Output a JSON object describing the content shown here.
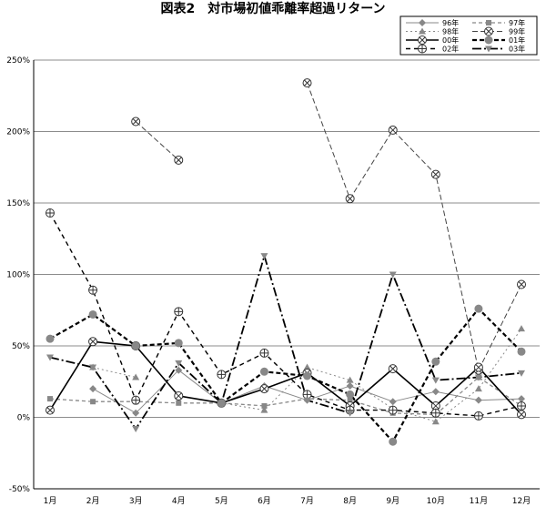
{
  "chart_data": {
    "type": "line",
    "title": "図表2　対市場初値乖離率超過リターン",
    "categories": [
      "1月",
      "2月",
      "3月",
      "4月",
      "5月",
      "6月",
      "7月",
      "8月",
      "9月",
      "10月",
      "11月",
      "12月"
    ],
    "y_ticks": [
      "250%",
      "200%",
      "150%",
      "100%",
      "50%",
      "0%",
      "-50%"
    ],
    "ylim": [
      -50,
      250
    ],
    "grid": "horizontal",
    "legend_position": "top-right",
    "series": [
      {
        "name": "96年",
        "values": [
          null,
          20,
          3,
          33,
          10,
          22,
          12,
          22,
          11,
          18,
          12,
          13
        ]
      },
      {
        "name": "97年",
        "values": [
          13,
          11,
          11,
          10,
          10,
          8,
          13,
          12,
          3,
          2,
          28,
          8
        ]
      },
      {
        "name": "98年",
        "values": [
          null,
          35,
          28,
          null,
          10,
          5,
          35,
          26,
          6,
          -3,
          20,
          62
        ]
      },
      {
        "name": "99年",
        "values": [
          null,
          null,
          207,
          180,
          null,
          null,
          234,
          153,
          201,
          170,
          33,
          93
        ]
      },
      {
        "name": "00年",
        "values": [
          5,
          53,
          50,
          15,
          10,
          20,
          31,
          8,
          34,
          8,
          35,
          2
        ]
      },
      {
        "name": "01年",
        "values": [
          55,
          72,
          50,
          52,
          10,
          32,
          29,
          16,
          -17,
          39,
          76,
          46
        ]
      },
      {
        "name": "02年",
        "values": [
          143,
          89,
          12,
          74,
          30,
          45,
          16,
          5,
          5,
          3,
          1,
          8
        ]
      },
      {
        "name": "03年",
        "values": [
          42,
          35,
          -8,
          38,
          10,
          113,
          12,
          3,
          100,
          26,
          28,
          31
        ]
      }
    ]
  }
}
